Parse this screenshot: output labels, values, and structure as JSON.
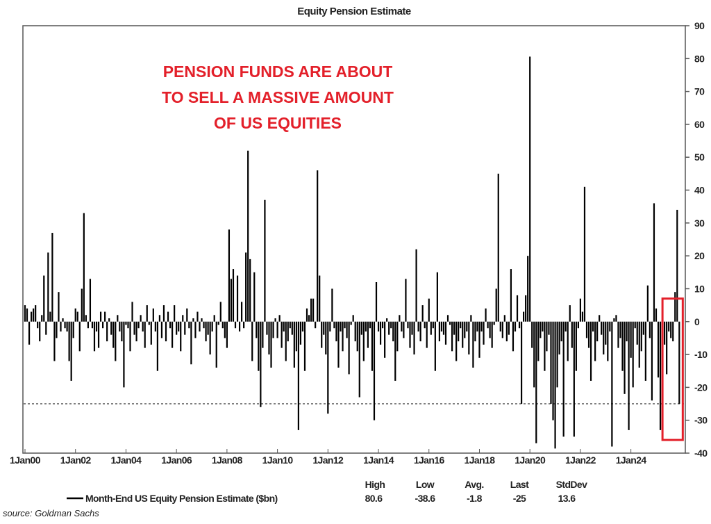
{
  "chart_data": {
    "type": "bar",
    "title": "Equity Pension Estimate",
    "annotation": [
      "PENSION FUNDS ARE ABOUT",
      "TO SELL A MASSIVE AMOUNT",
      "OF US EQUITIES"
    ],
    "annotation_color": "#e3202a",
    "x_start": "2000-01",
    "frequency": "monthly",
    "x_tick_labels": [
      "1Jan00",
      "1Jan02",
      "1Jan04",
      "1Jan06",
      "1Jan08",
      "1Jan10",
      "1Jan12",
      "1Jan14",
      "1Jan16",
      "1Jan18",
      "1Jan20",
      "1Jan22",
      "1Jan24"
    ],
    "y_ticks": [
      90,
      80,
      70,
      60,
      50,
      40,
      30,
      20,
      10,
      0,
      -10,
      -20,
      -30,
      -40
    ],
    "ylim": [
      -40,
      90
    ],
    "y_axis_side": "right",
    "grid": false,
    "reference_line": {
      "value": -25,
      "style": "dashed"
    },
    "highlight_box": {
      "from": "2025-05",
      "to": "2025-12",
      "ylim": [
        -36,
        7
      ],
      "color": "#e3202a"
    },
    "bar_color": "#000000",
    "series": [
      {
        "name": "Month-End US Equity Pension Estimate ($bn)",
        "values": [
          5,
          4,
          -7,
          3,
          4,
          5,
          -2,
          -6,
          2,
          14,
          -4,
          21,
          3,
          27,
          -12,
          -5,
          9,
          -3,
          1,
          -2,
          -3,
          -12,
          -18,
          -5,
          4,
          3,
          -9,
          10,
          33,
          2,
          -2,
          13,
          -2,
          -9,
          -3,
          -8,
          3,
          -2,
          3,
          -6,
          1,
          -4,
          -8,
          -12,
          2,
          -3,
          -6,
          -20,
          -1,
          -2,
          -9,
          6,
          -4,
          -6,
          -2,
          2,
          -3,
          -8,
          5,
          -1,
          -7,
          4,
          -3,
          -15,
          2,
          -5,
          5,
          -6,
          3,
          -2,
          -8,
          5,
          -4,
          -3,
          -9,
          2,
          -4,
          4,
          -2,
          -13,
          1,
          -5,
          3,
          -3,
          1,
          -2,
          -6,
          -4,
          -10,
          -3,
          2,
          -14,
          -1,
          6,
          -2,
          -5,
          -8,
          28,
          13,
          16,
          -2,
          14,
          -3,
          6,
          -2,
          21,
          52,
          19,
          -12,
          15,
          -5,
          -15,
          -26,
          -8,
          37,
          -4,
          -10,
          -14,
          -5,
          1,
          -5,
          2,
          -8,
          -3,
          -12,
          -6,
          -2,
          -4,
          -14,
          -9,
          -33,
          -7,
          -3,
          -15,
          4,
          2,
          7,
          7,
          -2,
          46,
          14,
          -8,
          -4,
          -10,
          -28,
          -3,
          10,
          -2,
          -6,
          -14,
          -3,
          -9,
          -2,
          -5,
          -16,
          -1,
          2,
          -6,
          -9,
          -23,
          -4,
          -12,
          -3,
          -8,
          -2,
          -15,
          -30,
          12,
          -3,
          -7,
          -2,
          -11,
          1,
          -4,
          -2,
          -6,
          -18,
          -9,
          2,
          -3,
          -5,
          13,
          -2,
          -8,
          -4,
          -10,
          22,
          -3,
          -6,
          5,
          -2,
          -8,
          7,
          -4,
          -2,
          -15,
          15,
          -6,
          -3,
          -4,
          -7,
          2,
          -1,
          -9,
          -4,
          -12,
          -6,
          -2,
          -8,
          -5,
          -3,
          -10,
          2,
          -14,
          -6,
          -3,
          -11,
          -3,
          -7,
          4,
          -2,
          -5,
          -8,
          -1,
          10,
          45,
          -3,
          -5,
          2,
          -6,
          -4,
          16,
          -9,
          -3,
          8,
          -2,
          -25,
          3,
          8,
          20,
          80.6,
          -8,
          -20,
          -37,
          -12,
          -5,
          -3,
          -15,
          -9,
          -4,
          -25,
          -30,
          -38.6,
          -20,
          -10,
          -6,
          -35,
          -3,
          -12,
          5,
          -8,
          -35,
          -15,
          -2,
          7,
          3,
          41,
          -5,
          -8,
          -18,
          -3,
          -12,
          -6,
          2,
          -4,
          -10,
          -7,
          -12,
          -3,
          -38,
          1,
          2,
          -8,
          -5,
          -15,
          -22,
          -6,
          -33,
          -11,
          -20,
          -2,
          -7,
          -14,
          -9,
          -4,
          -18,
          11,
          -5,
          -24,
          36,
          4,
          -17,
          -33,
          2,
          -7,
          -16,
          -3,
          -5,
          -6,
          9,
          34,
          -25
        ]
      }
    ],
    "stats": {
      "headers": [
        "High",
        "Low",
        "Avg.",
        "Last",
        "StdDev"
      ],
      "values": [
        "80.6",
        "-38.6",
        "-1.8",
        "-25",
        "13.6"
      ]
    },
    "source": "source: Goldman Sachs"
  }
}
